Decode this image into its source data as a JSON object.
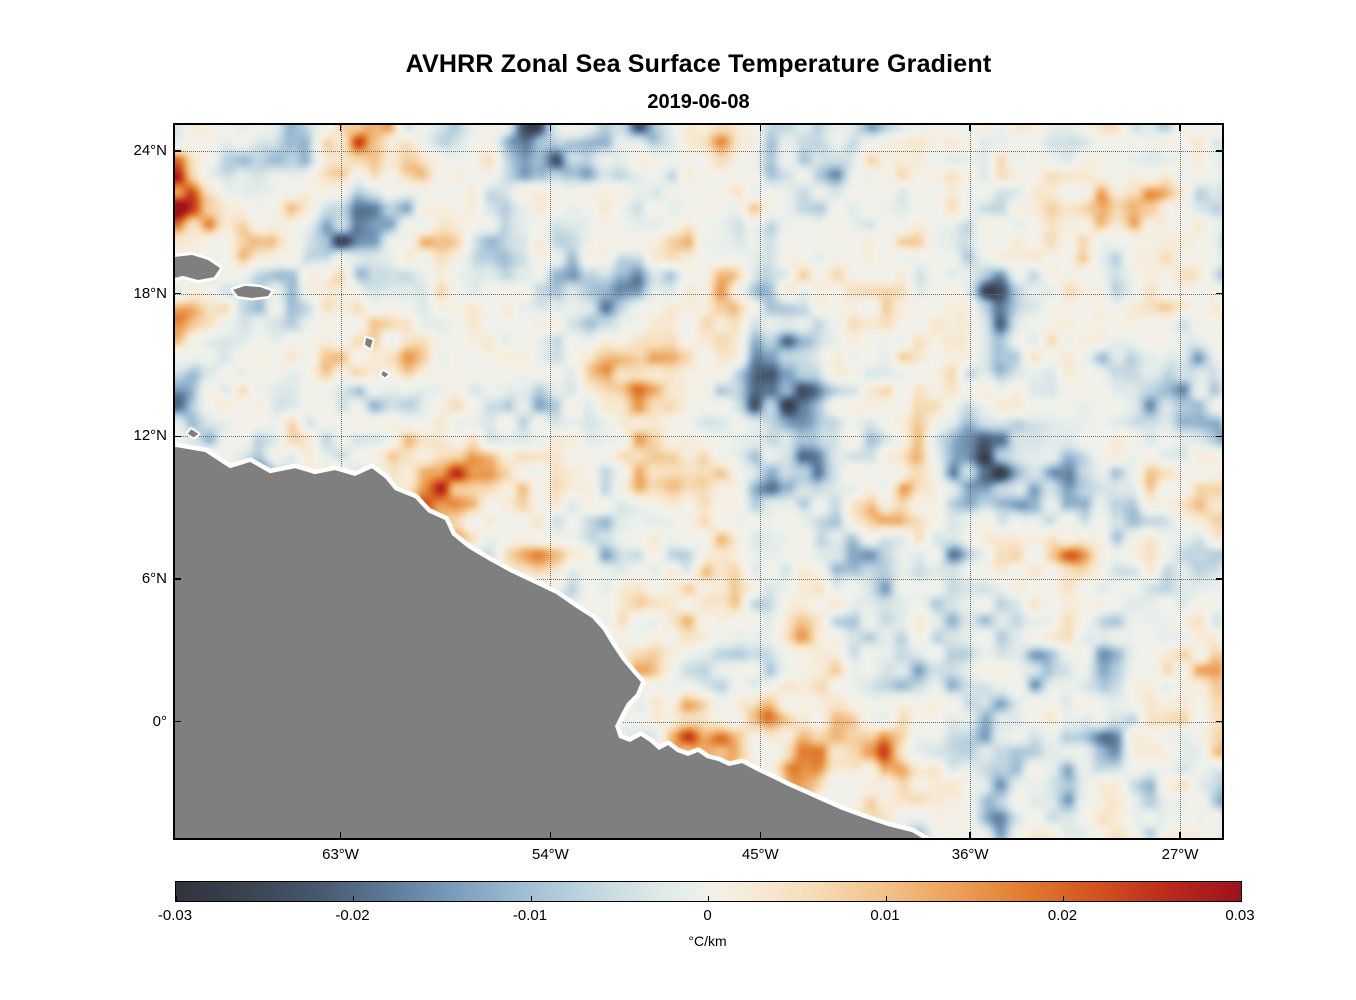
{
  "chart_data": {
    "type": "heatmap",
    "title": "AVHRR Zonal Sea Surface Temperature Gradient",
    "subtitle": "2019-06-08",
    "variable": "zonal sea surface temperature gradient",
    "units": "°C/km",
    "axes": {
      "xlim": [
        -70.1,
        -25.2
      ],
      "ylim": [
        -4.9,
        25.1
      ],
      "xticks": [
        {
          "value": -63,
          "label": "63°W"
        },
        {
          "value": -54,
          "label": "54°W"
        },
        {
          "value": -45,
          "label": "45°W"
        },
        {
          "value": -36,
          "label": "36°W"
        },
        {
          "value": -27,
          "label": "27°W"
        }
      ],
      "yticks": [
        {
          "value": 24,
          "label": "24°N"
        },
        {
          "value": 18,
          "label": "18°N"
        },
        {
          "value": 12,
          "label": "12°N"
        },
        {
          "value": 6,
          "label": "6°N"
        },
        {
          "value": 0,
          "label": "0°"
        }
      ],
      "grid": "dotted"
    },
    "field": {
      "description": "Mesoscale zonal SST gradient anomalies over the tropical western Atlantic; values mostly within ±0.01 °C/km with scattered stronger patches near ±0.02 to ±0.03 °C/km",
      "range": [
        -0.03,
        0.03
      ]
    },
    "colorbar": {
      "orientation": "horizontal",
      "min": -0.03,
      "max": 0.03,
      "ticks": [
        "-0.03",
        "-0.02",
        "-0.01",
        "0",
        "0.01",
        "0.02",
        "0.03"
      ],
      "tick_values": [
        -0.03,
        -0.02,
        -0.01,
        0,
        0.01,
        0.02,
        0.03
      ],
      "label": "°C/km"
    },
    "colormap": {
      "name": "diverging dark-blue / white / red",
      "stops": [
        {
          "t": -0.03,
          "color": "#30333b"
        },
        {
          "t": -0.026,
          "color": "#3a4350"
        },
        {
          "t": -0.022,
          "color": "#47586e"
        },
        {
          "t": -0.018,
          "color": "#5d7a99"
        },
        {
          "t": -0.014,
          "color": "#7e9fbe"
        },
        {
          "t": -0.01,
          "color": "#a3c1d6"
        },
        {
          "t": -0.006,
          "color": "#c6d9e2"
        },
        {
          "t": -0.003,
          "color": "#dde8e8"
        },
        {
          "t": -0.001,
          "color": "#e9efeb"
        },
        {
          "t": 0.0,
          "color": "#f1f1ea"
        },
        {
          "t": 0.001,
          "color": "#f5efe2"
        },
        {
          "t": 0.003,
          "color": "#f7e9d2"
        },
        {
          "t": 0.006,
          "color": "#f6dcb6"
        },
        {
          "t": 0.01,
          "color": "#f2c188"
        },
        {
          "t": 0.014,
          "color": "#eca057"
        },
        {
          "t": 0.018,
          "color": "#e07a2e"
        },
        {
          "t": 0.022,
          "color": "#d1511f"
        },
        {
          "t": 0.026,
          "color": "#b92a1d"
        },
        {
          "t": 0.03,
          "color": "#9d121d"
        }
      ]
    },
    "land": {
      "color": "#7f7f7f",
      "coast_halo_color": "#ffffff",
      "polygons": [
        {
          "name": "south-america-landmass",
          "halo": 9,
          "points": [
            [
              -70.6,
              11.64
            ],
            [
              -68.81,
              11.34
            ],
            [
              -67.74,
              10.66
            ],
            [
              -66.88,
              10.92
            ],
            [
              -66.03,
              10.45
            ],
            [
              -64.95,
              10.66
            ],
            [
              -64.1,
              10.41
            ],
            [
              -63.24,
              10.58
            ],
            [
              -62.38,
              10.33
            ],
            [
              -61.65,
              10.66
            ],
            [
              -61.09,
              10.24
            ],
            [
              -60.67,
              9.74
            ],
            [
              -59.81,
              9.4
            ],
            [
              -59.25,
              8.81
            ],
            [
              -58.52,
              8.48
            ],
            [
              -58.22,
              7.85
            ],
            [
              -57.54,
              7.3
            ],
            [
              -56.68,
              6.8
            ],
            [
              -55.73,
              6.29
            ],
            [
              -54.66,
              5.79
            ],
            [
              -53.76,
              5.37
            ],
            [
              -52.95,
              4.82
            ],
            [
              -52.22,
              4.36
            ],
            [
              -51.75,
              3.85
            ],
            [
              -51.36,
              3.22
            ],
            [
              -50.93,
              2.59
            ],
            [
              -50.46,
              2.04
            ],
            [
              -50.12,
              1.66
            ],
            [
              -50.33,
              1.16
            ],
            [
              -50.72,
              0.78
            ],
            [
              -50.97,
              0.32
            ],
            [
              -51.23,
              -0.19
            ],
            [
              -51.06,
              -0.69
            ],
            [
              -50.59,
              -0.86
            ],
            [
              -50.12,
              -0.61
            ],
            [
              -49.73,
              -0.86
            ],
            [
              -49.35,
              -1.2
            ],
            [
              -48.96,
              -0.99
            ],
            [
              -48.57,
              -1.28
            ],
            [
              -48.1,
              -1.45
            ],
            [
              -47.67,
              -1.28
            ],
            [
              -47.29,
              -1.54
            ],
            [
              -46.81,
              -1.66
            ],
            [
              -46.34,
              -1.87
            ],
            [
              -45.78,
              -1.75
            ],
            [
              -45.14,
              -2.08
            ],
            [
              -44.5,
              -2.38
            ],
            [
              -43.81,
              -2.71
            ],
            [
              -43.12,
              -3.01
            ],
            [
              -42.35,
              -3.35
            ],
            [
              -41.49,
              -3.72
            ],
            [
              -40.55,
              -4.06
            ],
            [
              -39.52,
              -4.4
            ],
            [
              -38.49,
              -4.65
            ],
            [
              -37.2,
              -5.4
            ],
            [
              -70.6,
              -5.4
            ]
          ]
        },
        {
          "name": "island-hispaniola",
          "halo": 6,
          "points": [
            [
              -70.6,
              19.5
            ],
            [
              -69.37,
              19.63
            ],
            [
              -68.68,
              19.42
            ],
            [
              -68.17,
              19.08
            ],
            [
              -68.43,
              18.7
            ],
            [
              -69.11,
              18.58
            ],
            [
              -69.76,
              18.75
            ],
            [
              -70.6,
              18.55
            ]
          ]
        },
        {
          "name": "island-puerto-rico",
          "halo": 5,
          "points": [
            [
              -67.61,
              18.16
            ],
            [
              -67.1,
              18.33
            ],
            [
              -66.45,
              18.28
            ],
            [
              -65.98,
              18.11
            ],
            [
              -66.11,
              17.9
            ],
            [
              -66.8,
              17.82
            ],
            [
              -67.4,
              17.9
            ]
          ]
        },
        {
          "name": "island-lesser-antilles-north",
          "halo": 4,
          "points": [
            [
              -61.91,
              16.14
            ],
            [
              -61.62,
              16.05
            ],
            [
              -61.72,
              15.7
            ],
            [
              -61.95,
              15.85
            ]
          ]
        },
        {
          "name": "island-lesser-antilles-south",
          "halo": 4,
          "points": [
            [
              -61.18,
              14.75
            ],
            [
              -60.95,
              14.62
            ],
            [
              -61.1,
              14.48
            ],
            [
              -61.25,
              14.6
            ]
          ]
        },
        {
          "name": "island-curacao",
          "halo": 4,
          "points": [
            [
              -69.4,
              12.3
            ],
            [
              -69.1,
              12.1
            ],
            [
              -69.3,
              11.95
            ],
            [
              -69.55,
              12.12
            ]
          ]
        }
      ]
    }
  }
}
